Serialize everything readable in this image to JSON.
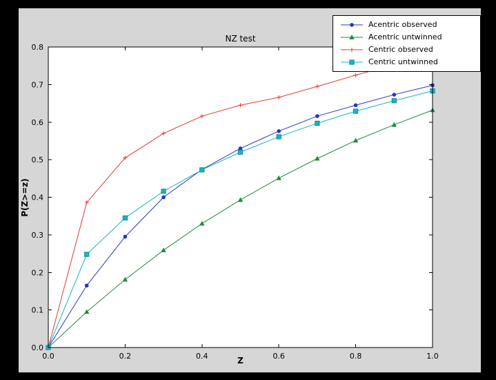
{
  "chart_data": {
    "type": "line",
    "title": "NZ test",
    "xlabel": "Z",
    "ylabel": "P(Z>=z)",
    "xlim": [
      0.0,
      1.0
    ],
    "ylim": [
      0.0,
      0.8
    ],
    "xticks": [
      0.0,
      0.2,
      0.4,
      0.6,
      0.8,
      1.0
    ],
    "xtick_labels": [
      "0.0",
      "0.2",
      "0.4",
      "0.6",
      "0.8",
      "1.0"
    ],
    "yticks": [
      0.0,
      0.1,
      0.2,
      0.3,
      0.4,
      0.5,
      0.6,
      0.7,
      0.8
    ],
    "ytick_labels": [
      "0.0",
      "0.1",
      "0.2",
      "0.3",
      "0.4",
      "0.5",
      "0.6",
      "0.7",
      "0.8"
    ],
    "grid": false,
    "legend_position": "upper right, overlapping above axes",
    "background": {
      "figure": "#d6d6d6",
      "plot": "#ffffff",
      "frame": "#000000"
    },
    "x": [
      0.0,
      0.1,
      0.2,
      0.3,
      0.4,
      0.5,
      0.6,
      0.7,
      0.8,
      0.9,
      1.0
    ],
    "series": [
      {
        "name": "Acentric observed",
        "color": "#2433c6",
        "marker": "circle",
        "values": [
          0.0,
          0.165,
          0.295,
          0.4,
          0.474,
          0.53,
          0.576,
          0.616,
          0.645,
          0.673,
          0.698
        ]
      },
      {
        "name": "Acentric untwinned",
        "color": "#1d8a3c",
        "marker": "triangle",
        "values": [
          0.0,
          0.095,
          0.181,
          0.259,
          0.33,
          0.393,
          0.451,
          0.503,
          0.551,
          0.593,
          0.632
        ]
      },
      {
        "name": "Centric observed",
        "color": "#e23b2e",
        "marker": "plus",
        "values": [
          0.0,
          0.386,
          0.505,
          0.57,
          0.616,
          0.645,
          0.666,
          0.695,
          0.725,
          0.753,
          0.776
        ]
      },
      {
        "name": "Centric untwinned",
        "color": "#17b5c5",
        "marker": "square",
        "values": [
          0.0,
          0.248,
          0.345,
          0.416,
          0.473,
          0.52,
          0.561,
          0.597,
          0.629,
          0.657,
          0.683
        ]
      }
    ]
  }
}
